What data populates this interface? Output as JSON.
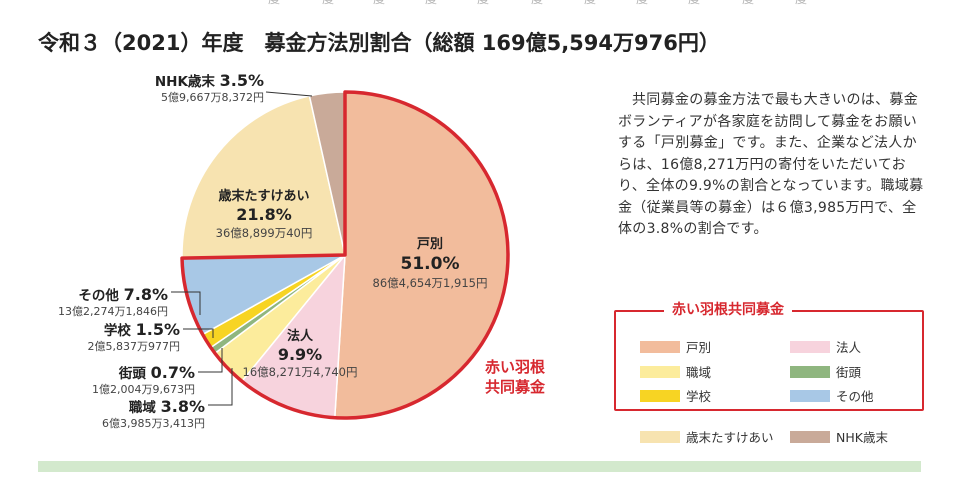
{
  "header_ticks": [
    "度",
    "度",
    "度",
    "度",
    "度",
    "度",
    "度",
    "度",
    "度",
    "度",
    "度"
  ],
  "chart_data": {
    "type": "pie",
    "title": "令和３（2021）年度　募金方法別割合（総額 169億5,594万976円）",
    "slices": [
      {
        "name": "戸別",
        "pct_label": "51.0%",
        "amount": "86億4,654万1,915円",
        "value": 51.0,
        "color": "#f2bc9c"
      },
      {
        "name": "法人",
        "pct_label": "9.9%",
        "amount": "16億8,271万4,740円",
        "value": 9.9,
        "color": "#f7d3dd"
      },
      {
        "name": "職域",
        "pct_label": "3.8%",
        "amount": "6億3,985万3,413円",
        "value": 3.8,
        "color": "#fcec9c"
      },
      {
        "name": "街頭",
        "pct_label": "0.7%",
        "amount": "1億2,004万9,673円",
        "value": 0.7,
        "color": "#8fb67f"
      },
      {
        "name": "学校",
        "pct_label": "1.5%",
        "amount": "2億5,837万977円",
        "value": 1.5,
        "color": "#f7d423"
      },
      {
        "name": "その他",
        "pct_label": "7.8%",
        "amount": "13億2,274万1,846円",
        "value": 7.8,
        "color": "#a8c8e6"
      },
      {
        "name": "歳末たすけあい",
        "pct_label": "21.8%",
        "amount": "36億8,899万40円",
        "value": 21.8,
        "color": "#f7e3b0"
      },
      {
        "name": "NHK歳末",
        "pct_label": "3.5%",
        "amount": "5億9,667万8,372円",
        "value": 3.5,
        "color": "#c9aa99"
      }
    ],
    "group_label": "赤い羽根\n共同募金",
    "group_color": "#d7282f"
  },
  "description": "共同募金の募金方法で最も大きいのは、募金ボランティアが各家庭を訪問して募金をお願いする「戸別募金」です。また、企業など法人からは、16億8,271万円の寄付をいただいており、全体の9.9%の割合となっています。職域募金（従業員等の募金）は６億3,985万円で、全体の3.8%の割合です。",
  "legend": {
    "title": "赤い羽根共同募金",
    "inside": [
      {
        "label": "戸別",
        "color": "#f2bc9c"
      },
      {
        "label": "法人",
        "color": "#f7d3dd"
      },
      {
        "label": "職域",
        "color": "#fcec9c"
      },
      {
        "label": "街頭",
        "color": "#8fb67f"
      },
      {
        "label": "学校",
        "color": "#f7d423"
      },
      {
        "label": "その他",
        "color": "#a8c8e6"
      }
    ],
    "outside": [
      {
        "label": "歳末たすけあい",
        "color": "#f7e3b0"
      },
      {
        "label": "NHK歳末",
        "color": "#c9aa99"
      }
    ]
  }
}
